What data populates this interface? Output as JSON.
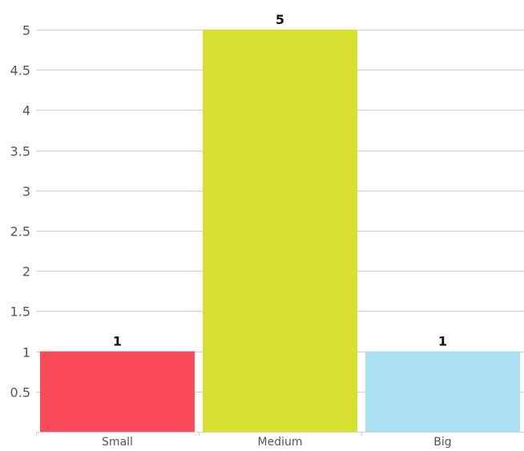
{
  "chart_data": {
    "type": "bar",
    "categories": [
      "Small",
      "Medium",
      "Big"
    ],
    "values": [
      1,
      5,
      1
    ],
    "colors": [
      "#fb4b5a",
      "#d7df31",
      "#aae0f1"
    ],
    "data_labels": [
      "1",
      "5",
      "1"
    ],
    "ylim": [
      0,
      5
    ],
    "y_ticks": [
      0.5,
      1,
      1.5,
      2,
      2.5,
      3,
      3.5,
      4,
      4.5,
      5
    ],
    "y_tick_labels": [
      "0.5",
      "1",
      "1.5",
      "2",
      "2.5",
      "3",
      "3.5",
      "4",
      "4.5",
      "5"
    ],
    "grid": true,
    "legend": "none",
    "title": "",
    "xlabel": "",
    "ylabel": ""
  }
}
